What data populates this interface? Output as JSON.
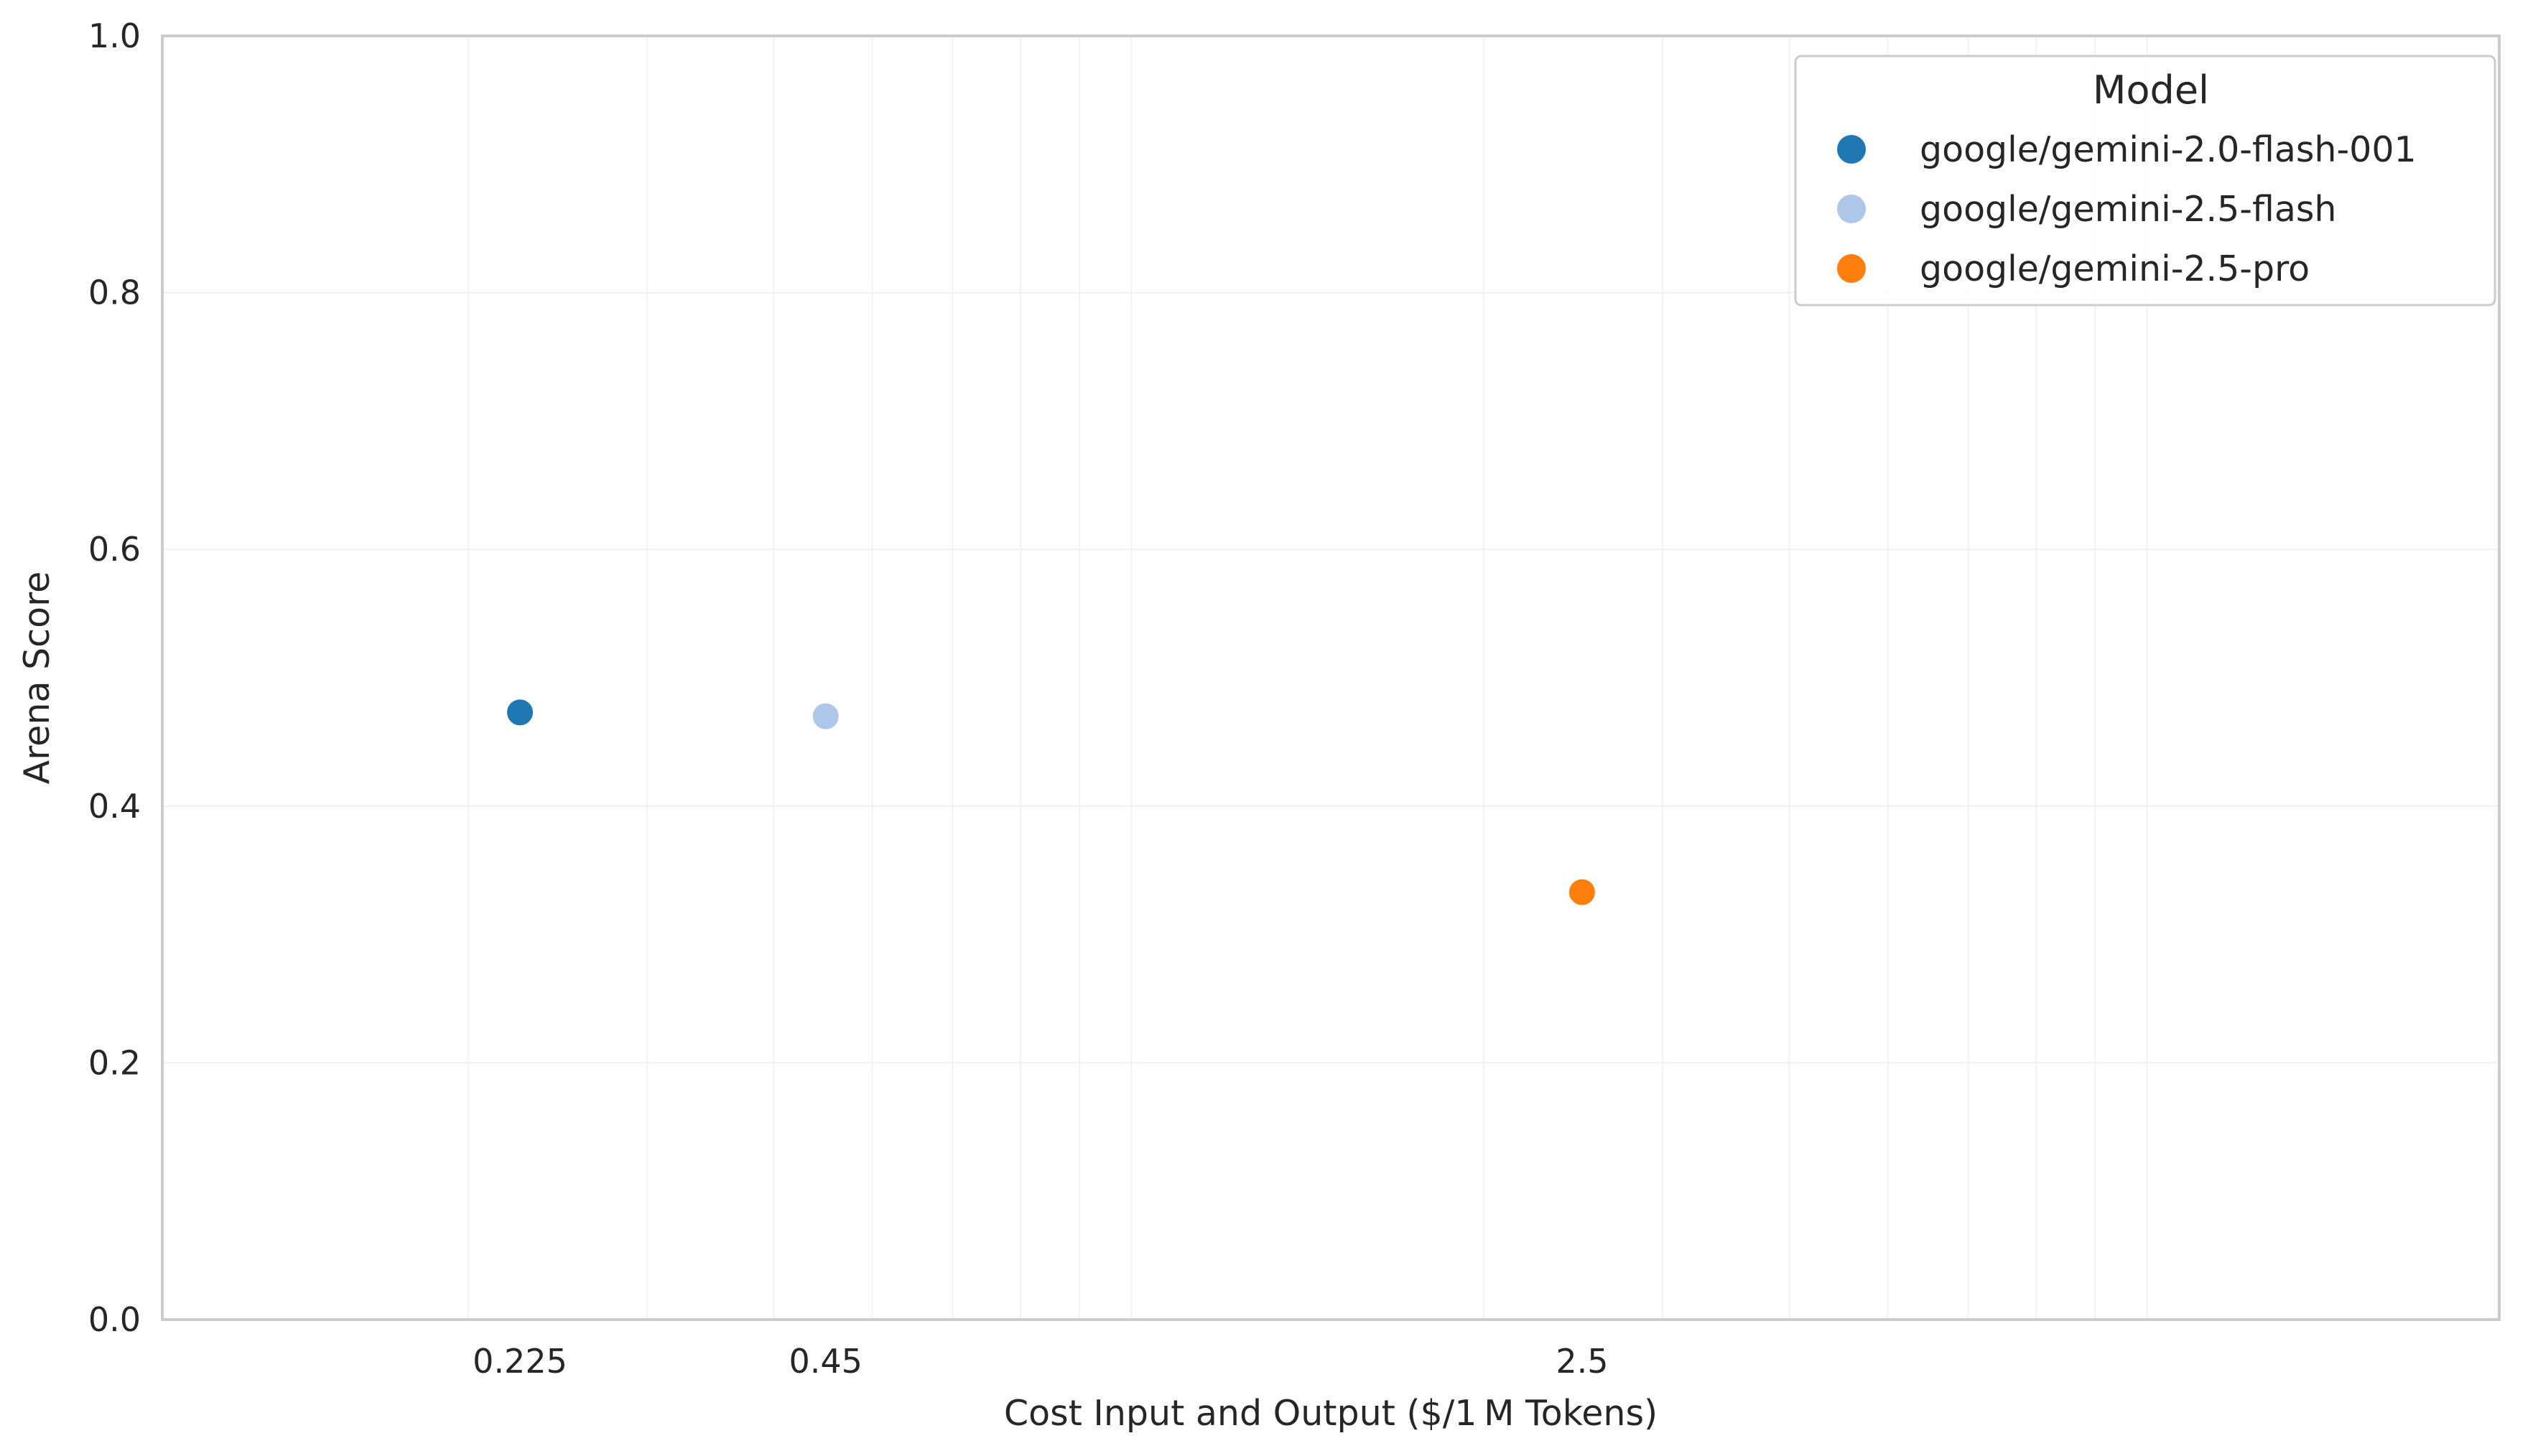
{
  "chart_data": {
    "type": "scatter",
    "xlabel": "Cost Input and Output ($/1 M Tokens)",
    "ylabel": "Arena Score",
    "x_scale": "log",
    "xlim": [
      0.1,
      20
    ],
    "ylim": [
      0.0,
      1.0
    ],
    "x_ticks": [
      {
        "value": 0.225,
        "label": "0.225"
      },
      {
        "value": 0.45,
        "label": "0.45"
      },
      {
        "value": 2.5,
        "label": "2.5"
      }
    ],
    "y_ticks": [
      {
        "value": 0.0,
        "label": "0.0"
      },
      {
        "value": 0.2,
        "label": "0.2"
      },
      {
        "value": 0.4,
        "label": "0.4"
      },
      {
        "value": 0.6,
        "label": "0.6"
      },
      {
        "value": 0.8,
        "label": "0.8"
      },
      {
        "value": 1.0,
        "label": "1.0"
      }
    ],
    "grid": true,
    "legend": {
      "title": "Model",
      "placement": "top-right"
    },
    "series": [
      {
        "name": "google/gemini-2.0-flash-001",
        "color": "#1f77b4",
        "x": [
          0.225
        ],
        "y": [
          0.473
        ]
      },
      {
        "name": "google/gemini-2.5-flash",
        "color": "#aec7e8",
        "x": [
          0.45
        ],
        "y": [
          0.47
        ]
      },
      {
        "name": "google/gemini-2.5-pro",
        "color": "#ff7f0e",
        "x": [
          2.5
        ],
        "y": [
          0.333
        ]
      }
    ]
  }
}
